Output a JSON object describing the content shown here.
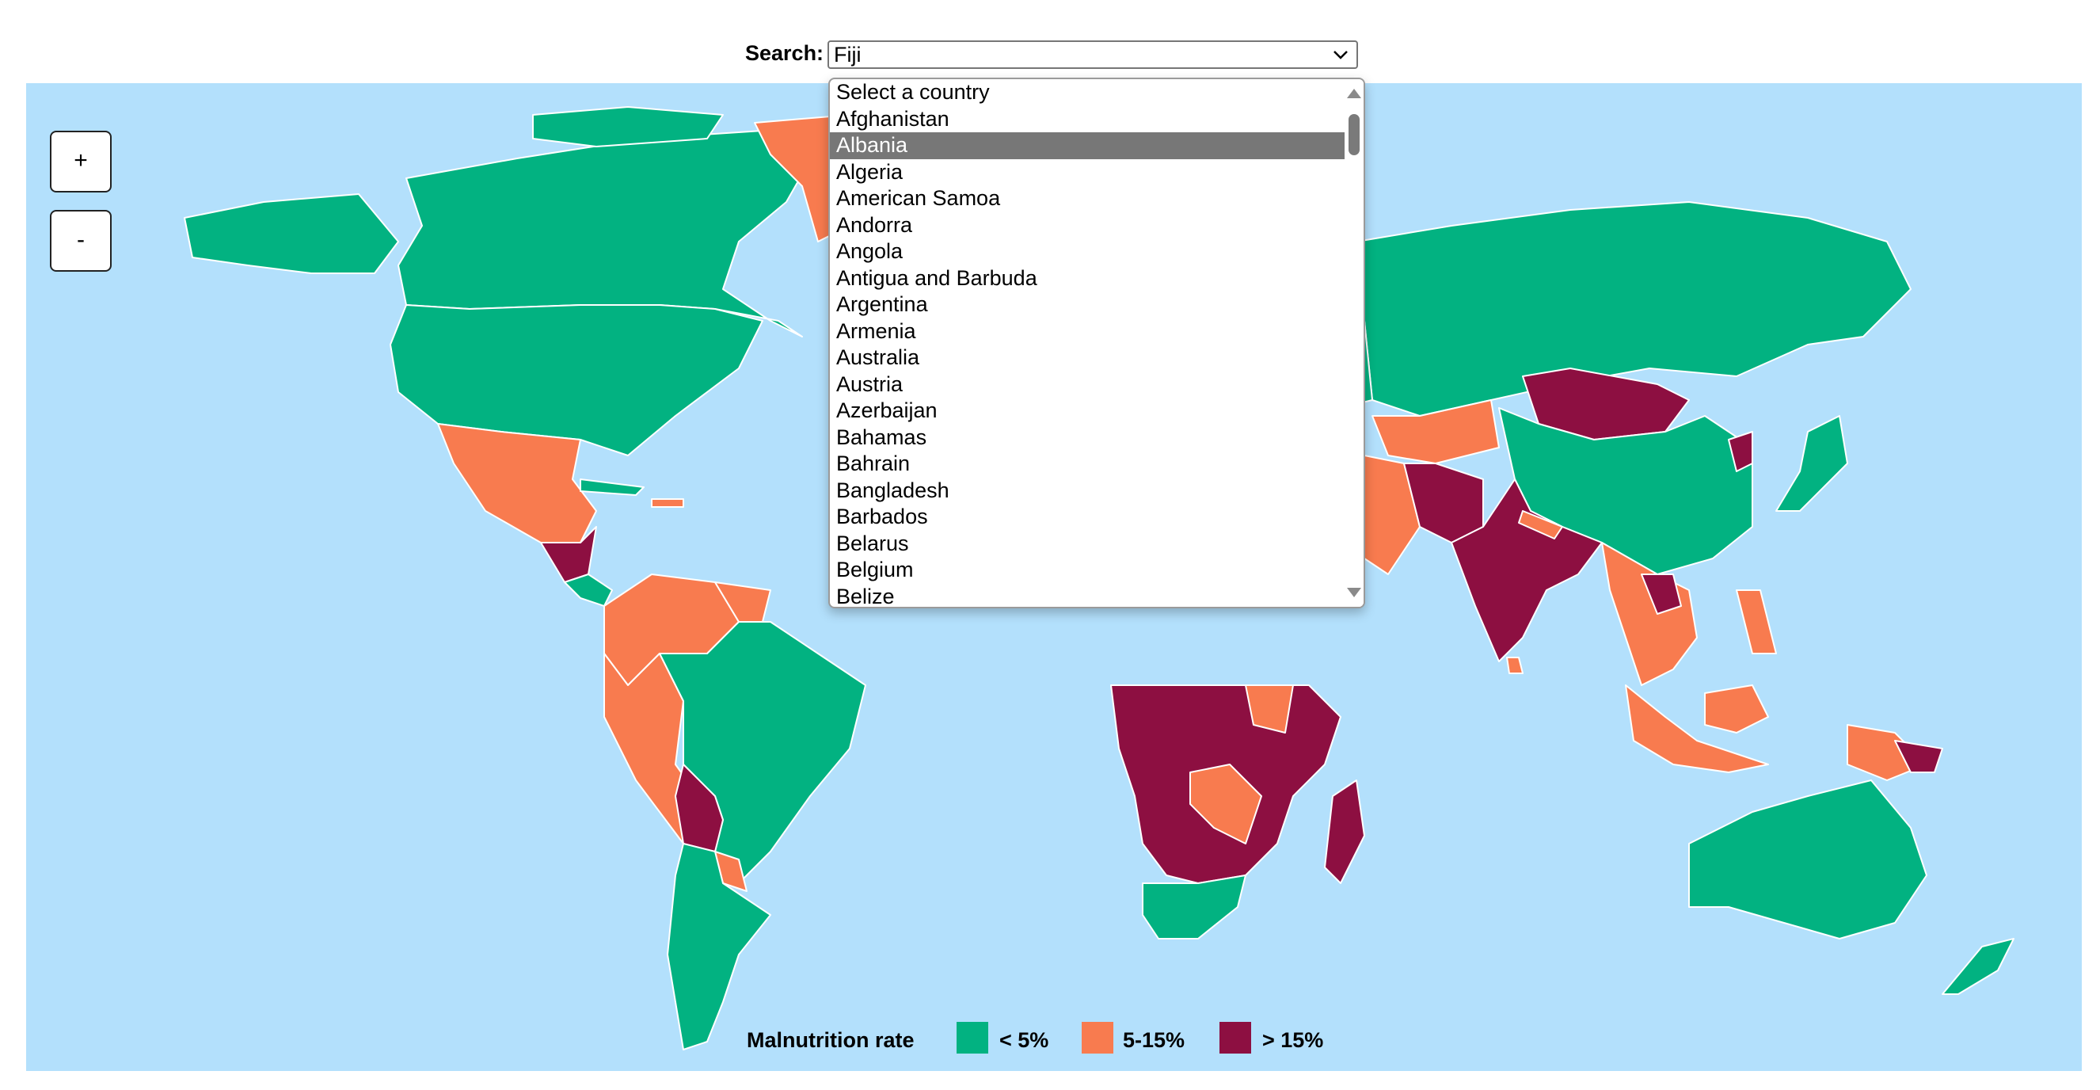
{
  "search": {
    "label": "Search:",
    "value": "Fiji",
    "icon": "chevron-down-icon"
  },
  "zoom": {
    "in_label": "+",
    "out_label": "-"
  },
  "dropdown": {
    "options": [
      "Select a country",
      "Afghanistan",
      "Albania",
      "Algeria",
      "American Samoa",
      "Andorra",
      "Angola",
      "Antigua and Barbuda",
      "Argentina",
      "Armenia",
      "Australia",
      "Austria",
      "Azerbaijan",
      "Bahamas",
      "Bahrain",
      "Bangladesh",
      "Barbados",
      "Belarus",
      "Belgium",
      "Belize"
    ],
    "highlighted": "Albania"
  },
  "legend": {
    "title": "Malnutrition rate",
    "items": [
      {
        "label": "< 5%",
        "color": "#02b281"
      },
      {
        "label": "5-15%",
        "color": "#f87b4f"
      },
      {
        "label": "> 15%",
        "color": "#8d0f41"
      }
    ]
  },
  "colors": {
    "ocean": "#b3e0fc",
    "low": "#02b281",
    "mid": "#f87b4f",
    "high": "#8d0f41",
    "border": "#ffffff"
  }
}
